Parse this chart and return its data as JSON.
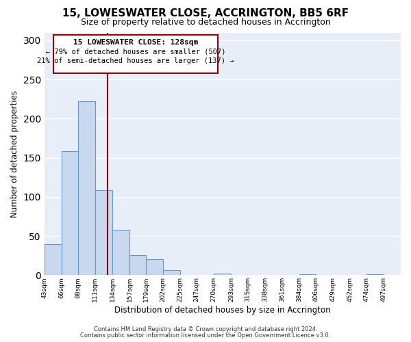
{
  "title": "15, LOWESWATER CLOSE, ACCRINGTON, BB5 6RF",
  "subtitle": "Size of property relative to detached houses in Accrington",
  "xlabel": "Distribution of detached houses by size in Accrington",
  "ylabel": "Number of detached properties",
  "bar_left_edges": [
    43,
    66,
    88,
    111,
    134,
    157,
    179,
    202,
    225,
    247,
    270,
    293,
    315,
    338,
    361,
    384,
    406,
    429,
    452,
    474
  ],
  "bar_widths": [
    23,
    22,
    23,
    23,
    23,
    22,
    23,
    23,
    22,
    23,
    23,
    22,
    23,
    23,
    23,
    22,
    23,
    23,
    22,
    23
  ],
  "bar_heights": [
    40,
    158,
    222,
    109,
    58,
    26,
    20,
    6,
    0,
    0,
    2,
    0,
    0,
    0,
    0,
    1,
    0,
    0,
    0,
    1
  ],
  "tick_labels": [
    "43sqm",
    "66sqm",
    "88sqm",
    "111sqm",
    "134sqm",
    "157sqm",
    "179sqm",
    "202sqm",
    "225sqm",
    "247sqm",
    "270sqm",
    "293sqm",
    "315sqm",
    "338sqm",
    "361sqm",
    "384sqm",
    "406sqm",
    "429sqm",
    "452sqm",
    "474sqm",
    "497sqm"
  ],
  "tick_positions": [
    43,
    66,
    88,
    111,
    134,
    157,
    179,
    202,
    225,
    247,
    270,
    293,
    315,
    338,
    361,
    384,
    406,
    429,
    452,
    474,
    497
  ],
  "bar_color": "#c8d8ee",
  "bar_edge_color": "#6699cc",
  "reference_line_x": 128,
  "reference_line_color": "#990000",
  "annotation_text_line1": "15 LOWESWATER CLOSE: 128sqm",
  "annotation_text_line2": "← 79% of detached houses are smaller (507)",
  "annotation_text_line3": "21% of semi-detached houses are larger (137) →",
  "ylim": [
    0,
    310
  ],
  "xlim": [
    43,
    520
  ],
  "footer_line1": "Contains HM Land Registry data © Crown copyright and database right 2024.",
  "footer_line2": "Contains public sector information licensed under the Open Government Licence v3.0.",
  "background_color": "#ffffff",
  "plot_bg_color": "#e8eef8",
  "grid_color": "#ffffff",
  "title_fontsize": 11,
  "subtitle_fontsize": 9
}
